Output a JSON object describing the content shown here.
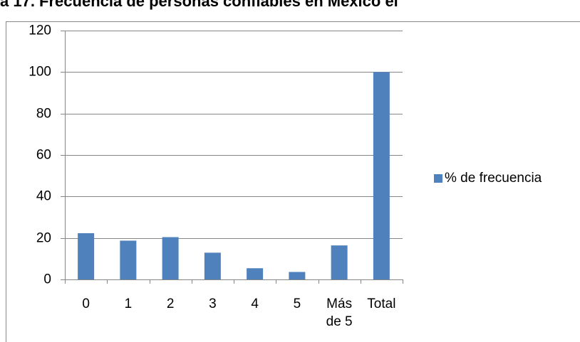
{
  "chart_data": {
    "type": "bar",
    "title": "a 17. Frecuencia de personas confiables en México el",
    "categories": [
      "0",
      "1",
      "2",
      "3",
      "4",
      "5",
      "Más de 5",
      "Total"
    ],
    "series": [
      {
        "name": "% de frecuencia",
        "color": "#4f81bd",
        "values": [
          22.3,
          18.7,
          20.4,
          12.9,
          5.4,
          3.6,
          16.4,
          100
        ]
      }
    ],
    "ylim": [
      0,
      120
    ],
    "yticks": [
      0,
      20,
      40,
      60,
      80,
      100,
      120
    ],
    "grid": true,
    "legend": "right"
  }
}
